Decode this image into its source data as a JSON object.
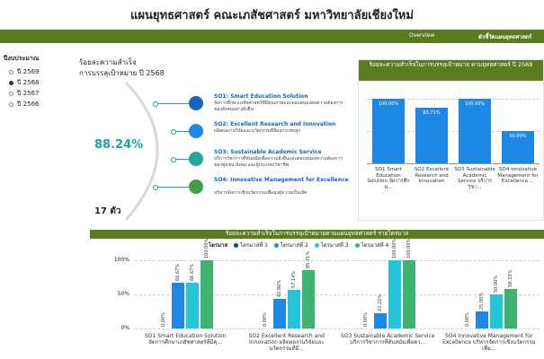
{
  "header": {
    "title": "แผนยุทธศาสตร์ คณะเภสัชศาสตร์ มหาวิทยาลัยเชียงใหม่"
  },
  "nav": {
    "items": [
      "Overview",
      "ตัวชี้วัดแผนยุทธศาสตร์"
    ]
  },
  "sidebar": {
    "title": "ปีงบประมาณ",
    "options": [
      {
        "label": "ปี 2569",
        "selected": false
      },
      {
        "label": "ปี 2568",
        "selected": true
      },
      {
        "label": "ปี 2567",
        "selected": false
      },
      {
        "label": "ปี 2566",
        "selected": false
      }
    ]
  },
  "summary": {
    "title": "ร้อยละความสำเร็จ",
    "subtitle": "การบรรลุเป้าหมาย  ปี 2568",
    "percent": "88.24%",
    "count": "17 ตัว",
    "strategies": [
      {
        "title": "SO1: Smart Education Solution",
        "description": "จัดการศึกษาเภสัชศาสตร์ที่มีคุณภาพและตอบสนองต่อความต้องการของสังคมอย่างยั่งยืน",
        "color": "#1565c0"
      },
      {
        "title": "SO2: Excellent Research and Innovation",
        "description": "ผลิตผลงานวิจัยและนวัตกรรมที่มีผลกระทบสูง",
        "color": "#1e88e5"
      },
      {
        "title": "SO3: Sustainable Academic Service",
        "description": "บริการวิชาการที่ทันสมัยเพื่อความยั่งยืนและตอบสนองความต้องการของชุมชน สังคม และผู้ประกอบวิชาชีพ",
        "color": "#26a69a"
      },
      {
        "title": "SO4: Innovative Management for Excellence",
        "description": "บริหารจัดการเชิงนวัตกรรมเพื่อมุ่งสู่ความเป็นเลิศ",
        "color": "#43a047"
      }
    ]
  },
  "chart_data": [
    {
      "type": "bar",
      "title": "ร้อยละความสำเร็จในการบรรลุเป้าหมาย ตามยุทธศาสตร์ ปี 2568",
      "categories": [
        "SO1 Smart Education Solution จัดการศึกษ...",
        "SO2 Excellent Research and Innovation",
        "SO3 Sustainable Academic Service บริการวิชา...",
        "SO4 Innovative Management for Excellence ..."
      ],
      "values": [
        100,
        85.71,
        100,
        50
      ],
      "value_labels": [
        "100.00%",
        "85.71%",
        "100.00%",
        "50.00%"
      ],
      "color": "#1e88e5",
      "ylim": [
        0,
        100
      ],
      "grid": true
    },
    {
      "type": "grouped_bar",
      "title": "ร้อยละความสำเร็จในการบรรลุเป้าหมายตามแผนยุทธศาสตร์ รายไตรมาส",
      "legend_title": "ไตรมาส",
      "categories": [
        "SO1 Smart Education Solution จัดการศึกษาเภสัชศาสตร์ที่มีคุ...",
        "SO2 Excellent Research and Innovation ผลิตผลงานวิจัยและนวัตกรรมที่มี...",
        "SO3 Sustainable Academic Service บริการวิชาการที่ทันสมัยเพื่อคว...",
        "SO4 Innovative Management for Excellence บริหารจัดการเชิงนวัตกรรมเพื่อ..."
      ],
      "series": [
        {
          "name": "ไตรมาสที่ 1",
          "color": "#0d47a1",
          "values": [
            0,
            0,
            0,
            0
          ],
          "value_labels": [
            "0.00%",
            "0.00%",
            "0.00%",
            "0.00%"
          ]
        },
        {
          "name": "ไตรมาสที่ 2",
          "color": "#1e88e5",
          "values": [
            66.67,
            42.86,
            22.22,
            25
          ],
          "value_labels": [
            "66.67%",
            "42.86%",
            "22.22%",
            "25.00%"
          ]
        },
        {
          "name": "ไตรมาสที่ 3",
          "color": "#26c6da",
          "values": [
            66.67,
            57.14,
            100,
            50
          ],
          "value_labels": [
            "66.67%",
            "57.14%",
            "100.00%",
            "50.00%"
          ]
        },
        {
          "name": "ไตรมาสที่ 4",
          "color": "#3cb371",
          "values": [
            100,
            85.71,
            100,
            58.33
          ],
          "value_labels": [
            "100.00%",
            "85.71%",
            "100.00%",
            "58.33%"
          ]
        }
      ],
      "ylim": [
        0,
        100
      ],
      "yticks": [
        {
          "value": 0,
          "label": "0%"
        },
        {
          "value": 50,
          "label": "50%"
        },
        {
          "value": 100,
          "label": "100%"
        }
      ],
      "grid": true
    }
  ]
}
